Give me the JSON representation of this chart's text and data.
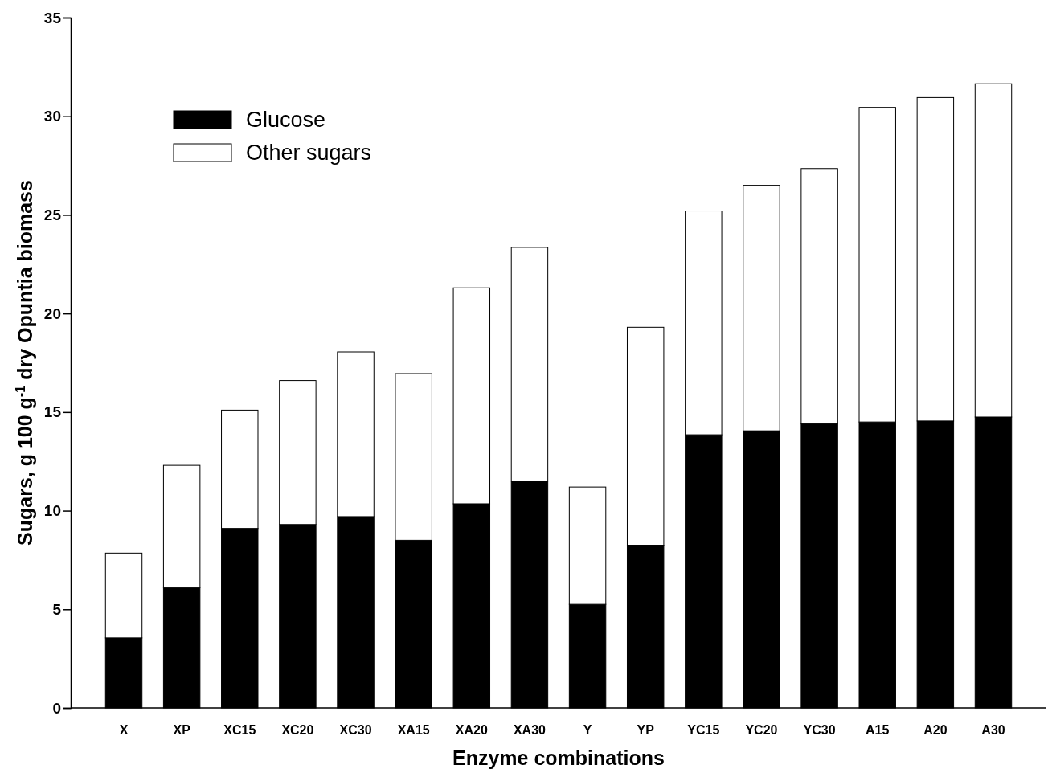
{
  "chart_data": {
    "type": "bar",
    "stacked": true,
    "xlabel": "Enzyme combinations",
    "ylabel": "Sugars, g 100 g$^{-1}$ dry Opuntia biomass",
    "categories": [
      "X",
      "XP",
      "XC15",
      "XC20",
      "XC30",
      "XA15",
      "XA20",
      "XA30",
      "Y",
      "YP",
      "YC15",
      "YC20",
      "YC30",
      "A15",
      "A20",
      "A30"
    ],
    "series": [
      {
        "name": "Glucose",
        "color": "#000000",
        "values": [
          3.55,
          6.1,
          9.1,
          9.3,
          9.7,
          8.5,
          10.35,
          11.5,
          5.25,
          8.25,
          13.85,
          14.05,
          14.4,
          14.5,
          14.55,
          14.75
        ]
      },
      {
        "name": "Other sugars",
        "color": "#ffffff",
        "values": [
          4.3,
          6.2,
          6.0,
          7.3,
          8.35,
          8.45,
          10.95,
          11.85,
          5.95,
          11.05,
          11.35,
          12.45,
          12.95,
          15.95,
          16.4,
          16.9
        ]
      }
    ],
    "ylim": [
      0,
      35
    ],
    "yticks": [
      0,
      5,
      10,
      15,
      20,
      25,
      30,
      35
    ],
    "grid": false,
    "legend": "top left"
  }
}
